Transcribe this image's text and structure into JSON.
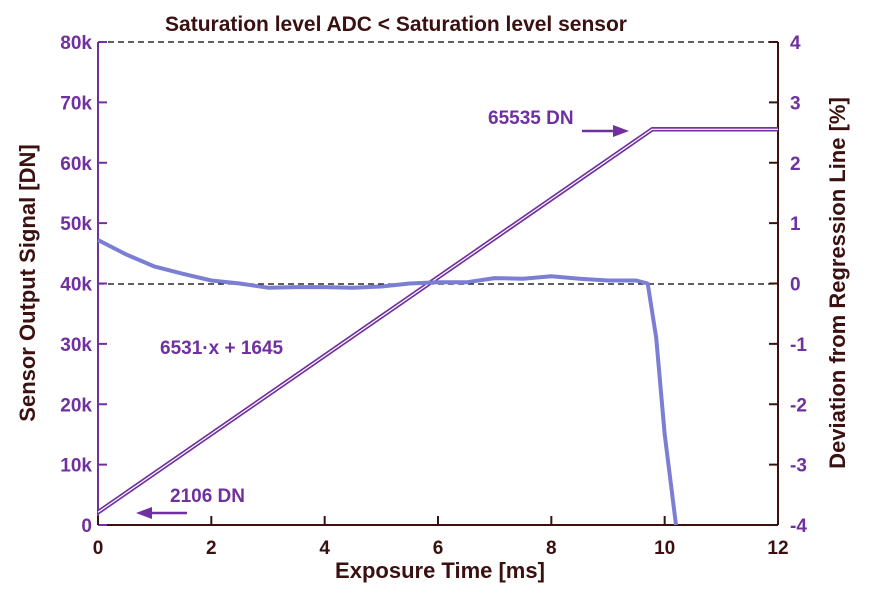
{
  "chart_data": {
    "type": "line",
    "title": "Saturation level ADC < Saturation level sensor",
    "xlabel": "Exposure Time [ms]",
    "ylabel": "Sensor Output Signal [DN]",
    "y2label": "Deviation from Regression Line [%]",
    "xlim": [
      0,
      12
    ],
    "ylim": [
      0,
      80000
    ],
    "y2lim": [
      -4,
      4
    ],
    "x_ticks": [
      0,
      2,
      4,
      6,
      8,
      10,
      12
    ],
    "x_tick_labels": [
      "0",
      "2",
      "4",
      "6",
      "8",
      "10",
      "12"
    ],
    "y_ticks": [
      0,
      10000,
      20000,
      30000,
      40000,
      50000,
      60000,
      70000,
      80000
    ],
    "y_tick_labels": [
      "0",
      "10k",
      "20k",
      "30k",
      "40k",
      "50k",
      "60k",
      "70k",
      "80k"
    ],
    "y2_ticks": [
      -4,
      -3,
      -2,
      -1,
      0,
      1,
      2,
      3,
      4
    ],
    "y2_tick_labels": [
      "-4",
      "-3",
      "-2",
      "-1",
      "0",
      "1",
      "2",
      "3",
      "4"
    ],
    "reference_lines": [
      {
        "axis": "y",
        "value": 80000,
        "style": "dashed"
      },
      {
        "axis": "y",
        "value": 40000,
        "style": "dashed"
      }
    ],
    "series": [
      {
        "axis": "left",
        "color": "#7030a0",
        "style": "double-line",
        "x": [
          0,
          9.78,
          12
        ],
        "y": [
          2106,
          65535,
          65535
        ]
      },
      {
        "axis": "right",
        "color": "#7b7fd4",
        "x": [
          0,
          0.5,
          1.0,
          1.5,
          2.0,
          2.5,
          3.0,
          3.5,
          4.0,
          4.5,
          5.0,
          5.5,
          6.0,
          6.5,
          7.0,
          7.5,
          8.0,
          8.5,
          9.0,
          9.5,
          9.7,
          9.85,
          10.0,
          10.2
        ],
        "y": [
          0.72,
          0.48,
          0.28,
          0.16,
          0.05,
          0.0,
          -0.07,
          -0.06,
          -0.06,
          -0.07,
          -0.05,
          0.0,
          0.02,
          0.02,
          0.09,
          0.08,
          0.12,
          0.08,
          0.05,
          0.05,
          0.0,
          -0.9,
          -2.5,
          -4.0
        ]
      }
    ],
    "annotations": [
      {
        "text": "65535 DN",
        "arrow_direction": "right"
      },
      {
        "text": "6531·x + 1645"
      },
      {
        "text": "2106 DN",
        "arrow_direction": "left"
      }
    ]
  },
  "colors": {
    "axis_purple": "#7030a0",
    "axis_dark": "#3a1010",
    "deviation_line": "#7b7fd4"
  }
}
